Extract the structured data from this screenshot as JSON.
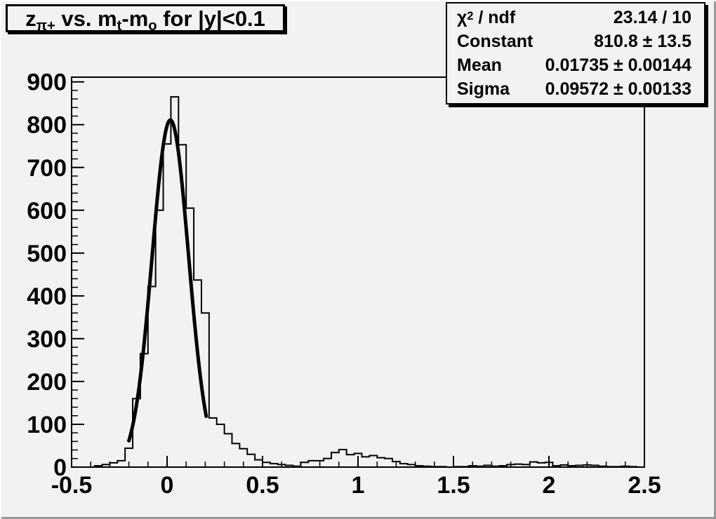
{
  "canvas": {
    "background": "#f2f2f2",
    "bevel_light": "#fdfdfd",
    "bevel_dark": "#999999",
    "line_color": "#000000"
  },
  "title_box": {
    "title_plain": "z_{π+} vs. m_t-m_o for |y|<0.1",
    "title_segments": [
      {
        "t": "z"
      },
      {
        "sub": "π+"
      },
      {
        "t": " vs. m"
      },
      {
        "sub": "t"
      },
      {
        "t": "-m"
      },
      {
        "sub": "o"
      },
      {
        "t": " for |y|<0.1"
      }
    ]
  },
  "stats_box": {
    "rows": [
      {
        "id": "chi2-ndf",
        "label_plain": "χ² / ndf",
        "label_segments": [
          {
            "t": "χ"
          },
          {
            "sup": "2"
          },
          {
            "t": " / ndf"
          }
        ],
        "value": "23.14 / 10"
      },
      {
        "id": "constant",
        "label_plain": "Constant",
        "label_segments": [
          {
            "t": "Constant"
          }
        ],
        "value": "810.8 ± 13.5"
      },
      {
        "id": "mean",
        "label_plain": "Mean",
        "label_segments": [
          {
            "t": "Mean"
          }
        ],
        "value": "0.01735 ± 0.00144"
      },
      {
        "id": "sigma",
        "label_plain": "Sigma",
        "label_segments": [
          {
            "t": "Sigma"
          }
        ],
        "value": "0.09572 ± 0.00133"
      }
    ]
  },
  "chart_data": {
    "type": "bar",
    "subtype": "step-histogram",
    "title": "z_{π+} vs. m_t-m_o for |y|<0.1",
    "xlabel": "",
    "ylabel": "",
    "xlim": [
      -0.5,
      2.5
    ],
    "ylim": [
      0,
      911
    ],
    "grid": false,
    "legend": false,
    "x_major_ticks": [
      -0.5,
      0,
      0.5,
      1,
      1.5,
      2,
      2.5
    ],
    "x_tick_labels": [
      "-0.5",
      "0",
      "0.5",
      "1",
      "1.5",
      "2",
      "2.5"
    ],
    "x_minor_step": 0.1,
    "y_major_ticks": [
      0,
      100,
      200,
      300,
      400,
      500,
      600,
      700,
      800,
      900
    ],
    "y_tick_labels": [
      "0",
      "100",
      "200",
      "300",
      "400",
      "500",
      "600",
      "700",
      "800",
      "900"
    ],
    "y_minor_step": 20,
    "histogram_color": "#000000",
    "fit_color": "#000000",
    "bins": {
      "start": -0.5,
      "width": 0.04,
      "counts": [
        0,
        0,
        0,
        3,
        6,
        10,
        15,
        44,
        160,
        265,
        422,
        600,
        755,
        865,
        753,
        605,
        437,
        360,
        115,
        100,
        78,
        55,
        43,
        30,
        17,
        11,
        8,
        6,
        4,
        2,
        11,
        15,
        15,
        20,
        34,
        41,
        29,
        32,
        24,
        27,
        22,
        20,
        13,
        8,
        6,
        3,
        2,
        1,
        1,
        0,
        1,
        1,
        3,
        2,
        4,
        2,
        3,
        6,
        7,
        6,
        12,
        10,
        11,
        3,
        5,
        3,
        4,
        5,
        4,
        2,
        1,
        1,
        2,
        1,
        0
      ]
    },
    "fit": {
      "type": "gaussian",
      "constant": 810.8,
      "mean": 0.01735,
      "sigma": 0.09572,
      "range": [
        -0.2,
        0.205
      ]
    }
  }
}
